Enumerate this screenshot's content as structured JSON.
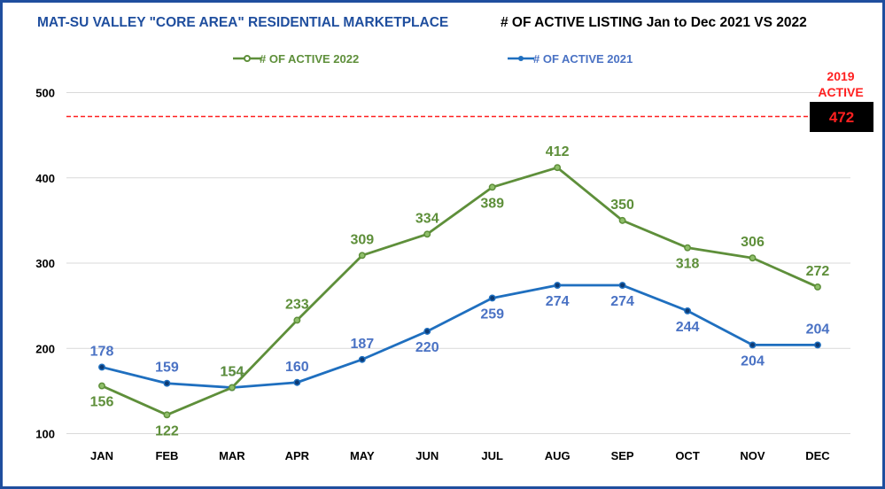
{
  "header": {
    "title_left": "MAT-SU VALLEY \"CORE AREA\" RESIDENTIAL MARKETPLACE",
    "title_right": "# OF ACTIVE LISTING Jan to Dec 2021 VS 2022"
  },
  "colors": {
    "frame": "#1f4e9e",
    "series_2022": "#5e8f3a",
    "series_2021": "#1f6fbf",
    "label_2021": "#4a72c4",
    "reference": "#ff2020",
    "reference_box": "#000000"
  },
  "chart_data": {
    "type": "line",
    "title": "# OF ACTIVE LISTING Jan to Dec 2021 VS 2022",
    "categories": [
      "JAN",
      "FEB",
      "MAR",
      "APR",
      "MAY",
      "JUN",
      "JUL",
      "AUG",
      "SEP",
      "OCT",
      "NOV",
      "DEC"
    ],
    "series": [
      {
        "name": "# OF ACTIVE 2022",
        "values": [
          156,
          122,
          154,
          233,
          309,
          334,
          389,
          412,
          350,
          318,
          306,
          272
        ]
      },
      {
        "name": "# OF ACTIVE 2021",
        "values": [
          178,
          159,
          154,
          160,
          187,
          220,
          259,
          274,
          274,
          244,
          204,
          204
        ]
      }
    ],
    "ylim": [
      100,
      500
    ],
    "yticks": [
      100,
      200,
      300,
      400,
      500
    ],
    "grid": true,
    "legend": "top",
    "reference_line": {
      "value": 472,
      "label_line1": "2019",
      "label_line2": "ACTIVE",
      "value_text": "472"
    }
  }
}
